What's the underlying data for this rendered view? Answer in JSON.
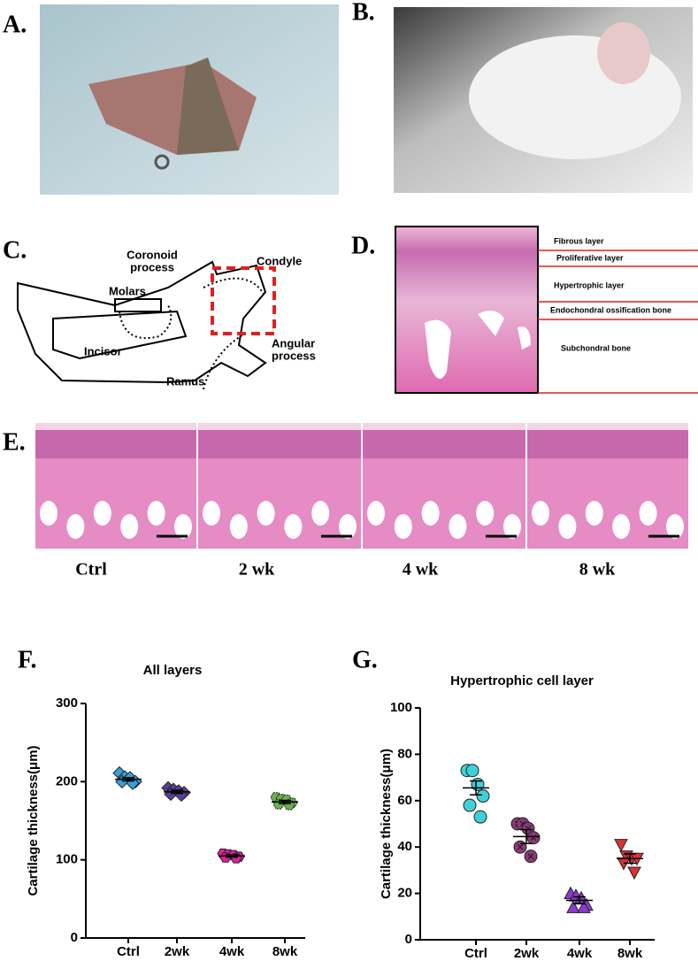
{
  "panels": {
    "a": "A.",
    "b": "B.",
    "c": "C.",
    "d": "D.",
    "e": "E.",
    "f": "F.",
    "g": "G."
  },
  "diagram": {
    "coronoid": [
      "Coronoid",
      "process"
    ],
    "condyle": "Condyle",
    "molars": "Molars",
    "incisor": "Incisor",
    "ramus": "Ramus",
    "angular": [
      "Angular",
      "process"
    ]
  },
  "histology_layers": [
    "Fibrous layer",
    "Proliferative layer",
    "Hypertrophic layer",
    "Endochondral ossification bone",
    "Subchondral bone"
  ],
  "groups_e": [
    "Ctrl",
    "2 wk",
    "4 wk",
    "8 wk"
  ],
  "chart_data": [
    {
      "type": "dot",
      "title": "All layers",
      "ylabel": "Cartilage thickness(μm)",
      "ylim": [
        0,
        300
      ],
      "yticks": [
        0,
        100,
        200,
        300
      ],
      "series": [
        {
          "name": "Ctrl",
          "color": "#3aa0d8",
          "marker": "diamond",
          "values": [
            211,
            206,
            205,
            200,
            200,
            198
          ],
          "mean": 203,
          "sem": 2
        },
        {
          "name": "2wk",
          "color": "#55409a",
          "marker": "diamond",
          "values": [
            192,
            190,
            188,
            186,
            184,
            183
          ],
          "mean": 187,
          "sem": 2
        },
        {
          "name": "4wk",
          "color": "#e0209a",
          "marker": "hexagon",
          "values": [
            108,
            107,
            106,
            104,
            103,
            102
          ],
          "mean": 105,
          "sem": 1.5
        },
        {
          "name": "8wk",
          "color": "#6ab04c",
          "marker": "hexagon-dot",
          "values": [
            180,
            178,
            177,
            173,
            171,
            170
          ],
          "mean": 174,
          "sem": 2
        }
      ]
    },
    {
      "type": "dot",
      "title": "Hypertrophic cell layer",
      "ylabel": "Cartilage thickness(μm)",
      "ylim": [
        0,
        100
      ],
      "yticks": [
        0,
        20,
        40,
        60,
        80,
        100
      ],
      "series": [
        {
          "name": "Ctrl",
          "color": "#3fd0d8",
          "marker": "circle",
          "values": [
            73,
            73,
            67,
            62,
            58,
            53
          ],
          "mean": 65.5,
          "sem": 3
        },
        {
          "name": "2wk",
          "color": "#8e3a7a",
          "marker": "circle-cross",
          "values": [
            50,
            50,
            48,
            44,
            40,
            36
          ],
          "mean": 44.5,
          "sem": 3
        },
        {
          "name": "4wk",
          "color": "#8a3ccc",
          "marker": "triangle-up",
          "values": [
            20,
            19,
            18,
            15,
            14,
            14
          ],
          "mean": 17,
          "sem": 1.5
        },
        {
          "name": "8wk",
          "color": "#e03030",
          "marker": "triangle-down",
          "values": [
            41,
            36,
            35,
            35,
            33,
            29
          ],
          "mean": 35,
          "sem": 2
        }
      ]
    }
  ]
}
